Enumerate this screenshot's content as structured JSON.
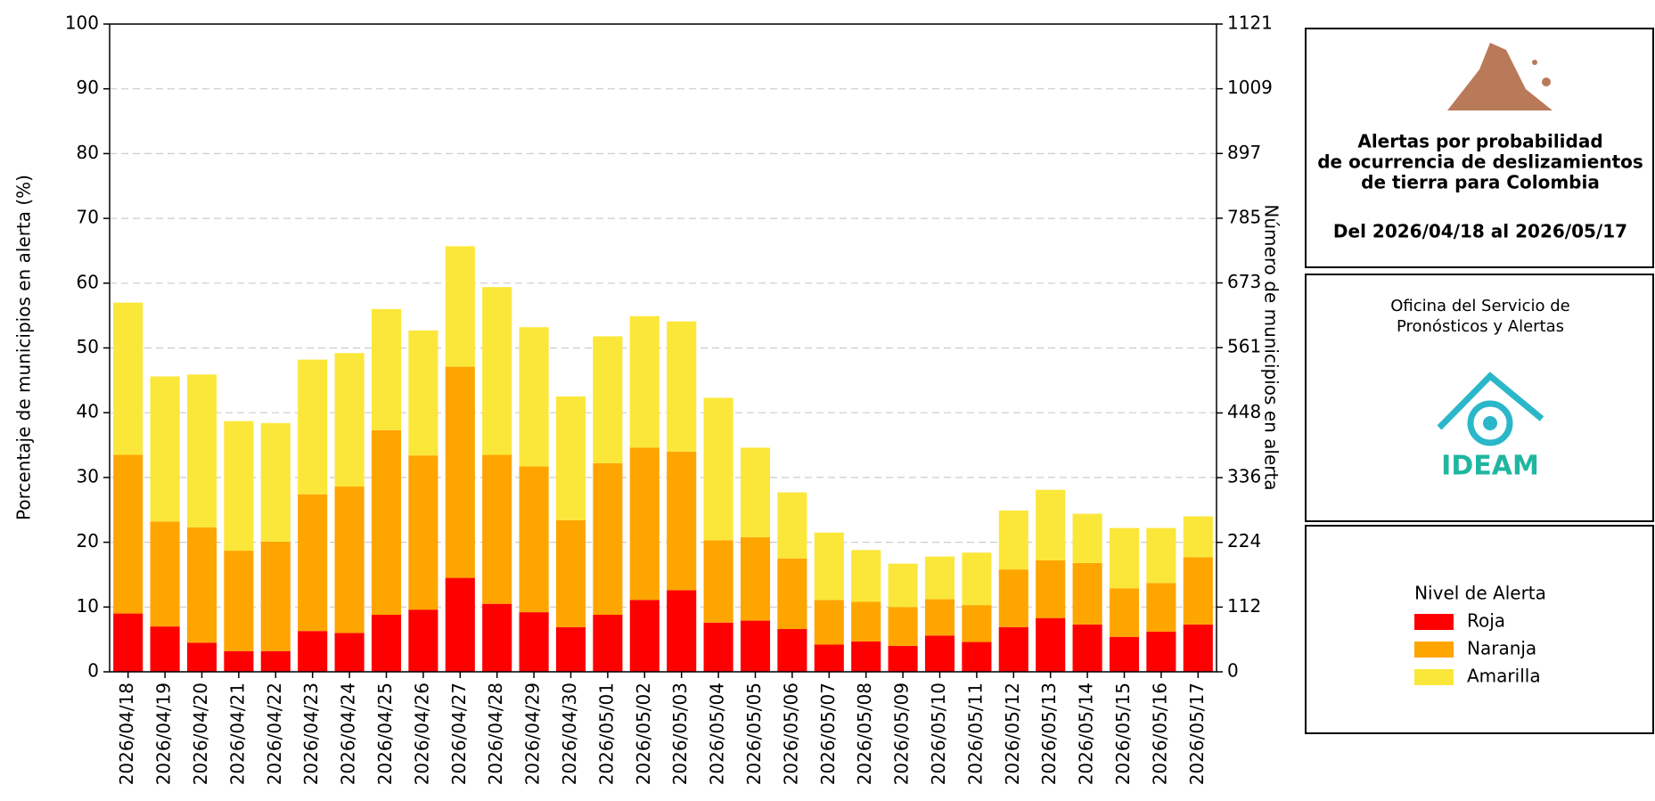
{
  "chart_data": {
    "type": "stacked_bar",
    "y_label": "Porcentaje de municipios en alerta (%)",
    "y2_label": "Número de municipios en alerta",
    "categories": [
      "2026/04/18",
      "2026/04/19",
      "2026/04/20",
      "2026/04/21",
      "2026/04/22",
      "2026/04/23",
      "2026/04/24",
      "2026/04/25",
      "2026/04/26",
      "2026/04/27",
      "2026/04/28",
      "2026/04/29",
      "2026/04/30",
      "2026/05/01",
      "2026/05/02",
      "2026/05/03",
      "2026/05/04",
      "2026/05/05",
      "2026/05/06",
      "2026/05/07",
      "2026/05/08",
      "2026/05/09",
      "2026/05/10",
      "2026/05/11",
      "2026/05/12",
      "2026/05/13",
      "2026/05/14",
      "2026/05/15",
      "2026/05/16",
      "2026/05/17"
    ],
    "series": [
      {
        "name": "Roja",
        "color": "#ff0000",
        "values": [
          9.0,
          7.0,
          4.5,
          3.2,
          3.2,
          6.3,
          6.0,
          8.8,
          9.6,
          14.5,
          10.5,
          9.2,
          6.9,
          8.8,
          11.1,
          12.6,
          7.6,
          7.9,
          6.6,
          4.2,
          4.7,
          4.0,
          5.6,
          4.6,
          6.9,
          8.3,
          7.3,
          5.4,
          6.2,
          7.3
        ]
      },
      {
        "name": "Naranja",
        "color": "#ffa500",
        "values": [
          24.5,
          16.2,
          17.8,
          15.5,
          16.9,
          21.1,
          22.6,
          28.5,
          23.8,
          32.6,
          23.0,
          22.5,
          16.5,
          23.4,
          23.5,
          21.4,
          12.7,
          12.9,
          10.9,
          6.9,
          6.1,
          6.0,
          5.6,
          5.7,
          8.9,
          8.9,
          9.5,
          7.5,
          7.5,
          10.4
        ]
      },
      {
        "name": "Amarilla",
        "color": "#fbe73a",
        "values": [
          23.5,
          22.4,
          23.6,
          20.0,
          18.3,
          20.8,
          20.6,
          18.7,
          19.3,
          18.6,
          25.9,
          21.5,
          19.1,
          19.6,
          20.3,
          20.1,
          22.0,
          13.8,
          10.2,
          10.4,
          8.0,
          6.7,
          6.6,
          8.1,
          9.1,
          10.9,
          7.6,
          9.3,
          8.5,
          6.3
        ]
      }
    ],
    "ylim": [
      0,
      100
    ],
    "yticks": [
      0,
      10,
      20,
      30,
      40,
      50,
      60,
      70,
      80,
      90,
      100
    ],
    "y2lim": [
      0,
      1121
    ],
    "y2ticks": [
      0,
      112,
      224,
      336,
      448,
      561,
      673,
      785,
      897,
      1009,
      1121
    ],
    "grid": true,
    "panel_title": [
      "Alertas por probabilidad",
      "de ocurrencia de deslizamientos",
      "de tierra para Colombia"
    ],
    "date_range": "Del 2026/04/18 al 2026/05/17",
    "office": [
      "Oficina del Servicio de",
      "Pronósticos y Alertas"
    ],
    "logo_text": "IDEAM",
    "legend_title": "Nivel de Alerta"
  }
}
